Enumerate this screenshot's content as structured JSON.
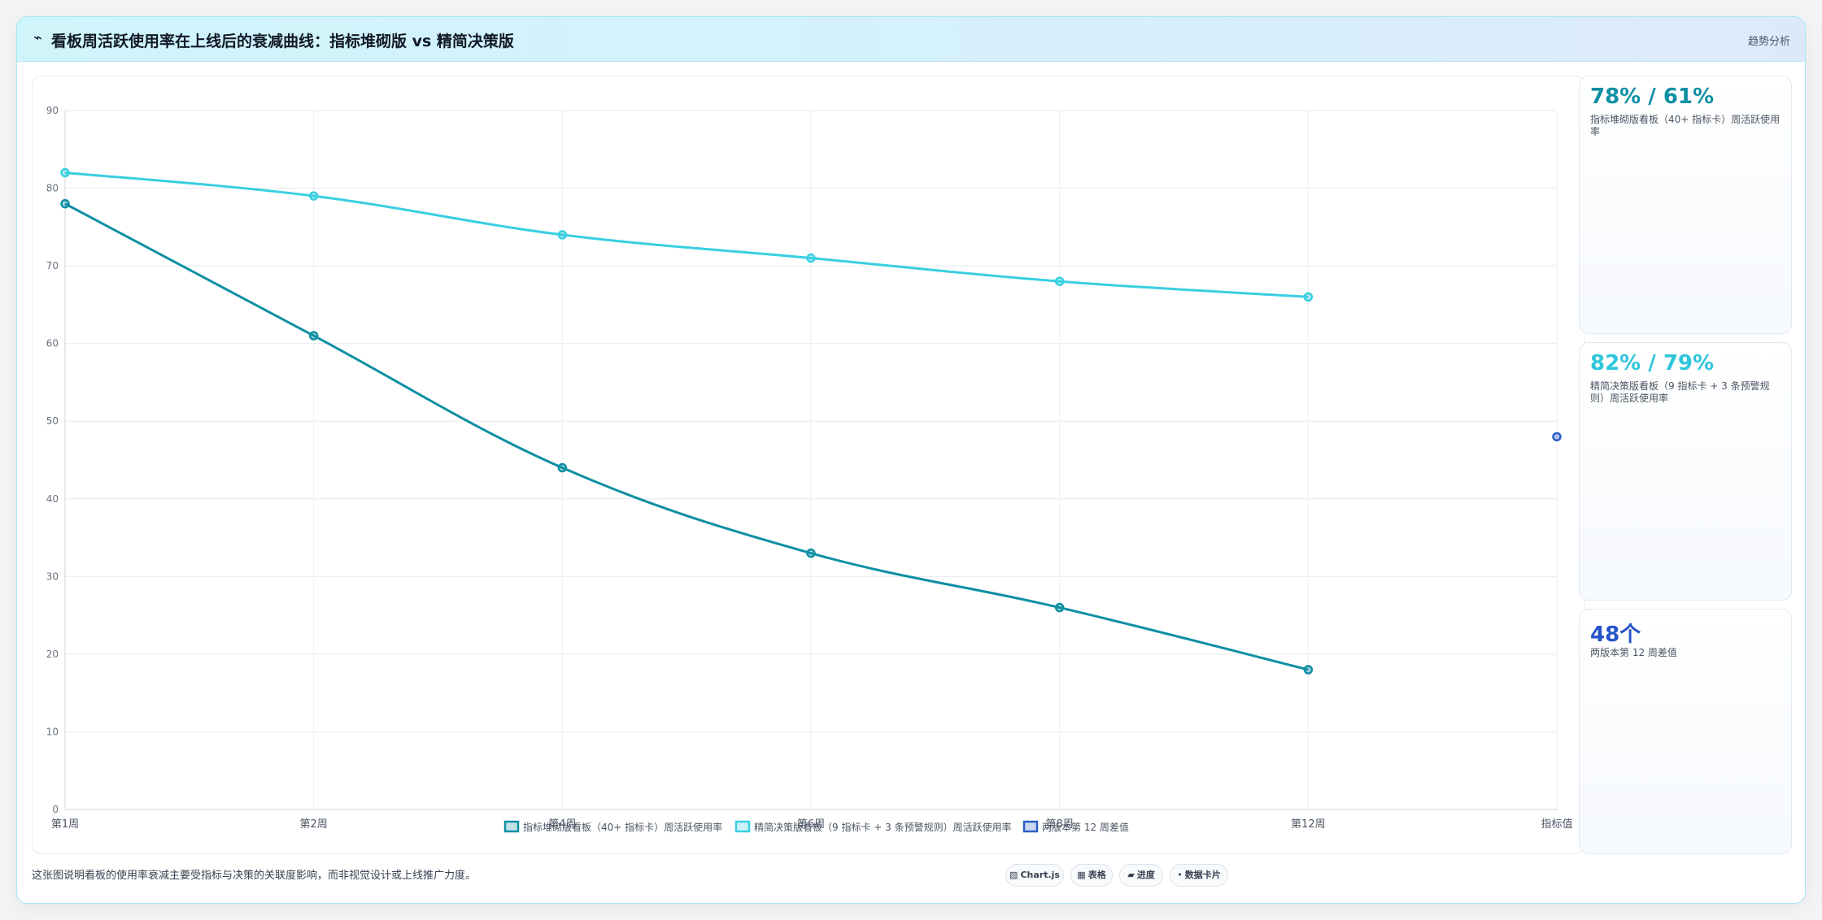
{
  "header": {
    "title": "看板周活跃使用率在上线后的衰减曲线：指标堆砌版 vs 精简决策版",
    "tag": "趋势分析",
    "icon": "trend-icon"
  },
  "chart_data": {
    "type": "line",
    "categories": [
      "第1周",
      "第2周",
      "第4周",
      "第6周",
      "第8周",
      "第12周",
      "指标值"
    ],
    "ylim": [
      0,
      90
    ],
    "yticks": [
      0,
      10,
      20,
      30,
      40,
      50,
      60,
      70,
      80,
      90
    ],
    "grid": true,
    "legend_position": "bottom",
    "series": [
      {
        "name": "指标堆砌版看板（40+ 指标卡）周活跃使用率",
        "color": "#0e8fa3",
        "values": [
          78,
          61,
          44,
          33,
          26,
          18,
          null
        ]
      },
      {
        "name": "精简决策版看板（9 指标卡 + 3 条预警规则）周活跃使用率",
        "color": "#38cfe2",
        "values": [
          82,
          79,
          74,
          71,
          68,
          66,
          null
        ]
      },
      {
        "name": "两版本第 12 周差值",
        "color": "#2b5fc7",
        "values": [
          null,
          null,
          null,
          null,
          null,
          null,
          48
        ]
      }
    ]
  },
  "kpis": [
    {
      "value": "78% / 61%",
      "label": "指标堆砌版看板（40+ 指标卡）周活跃使用率",
      "color": "#0e8fa3"
    },
    {
      "value": "82% / 79%",
      "label": "精简决策版看板（9 指标卡 + 3 条预警规则）周活跃使用率",
      "color": "#2fc6dc"
    },
    {
      "value": "48个",
      "label": "两版本第 12 周差值",
      "color": "#2553c9"
    }
  ],
  "footer": {
    "note": "这张图说明看板的使用率衰减主要受指标与决策的关联度影响，而非视觉设计或上线推广力度。"
  },
  "badges": [
    {
      "icon": "▨",
      "label": "Chart.js",
      "icon_name": "chart-icon"
    },
    {
      "icon": "▦",
      "label": "表格",
      "icon_name": "table-icon"
    },
    {
      "icon": "▰",
      "label": "进度",
      "icon_name": "progress-icon"
    },
    {
      "icon": "•",
      "label": "数据卡片",
      "icon_name": "card-icon"
    }
  ]
}
